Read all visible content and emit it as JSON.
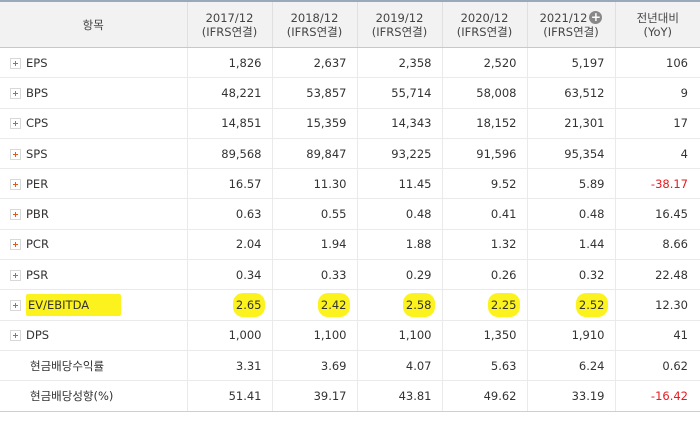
{
  "header": {
    "item": "항목",
    "columns": [
      {
        "year": "2017/12",
        "basis": "(IFRS연결)"
      },
      {
        "year": "2018/12",
        "basis": "(IFRS연결)"
      },
      {
        "year": "2019/12",
        "basis": "(IFRS연결)"
      },
      {
        "year": "2020/12",
        "basis": "(IFRS연결)"
      },
      {
        "year": "2021/12",
        "basis": "(IFRS연결)"
      }
    ],
    "yoy_line1": "전년대비",
    "yoy_line2": "(YoY)",
    "expand_icon": "plus-circle-icon"
  },
  "rows": [
    {
      "name": "EPS",
      "values": [
        "1,826",
        "2,637",
        "2,358",
        "2,520",
        "5,197"
      ],
      "yoy": "106"
    },
    {
      "name": "BPS",
      "values": [
        "48,221",
        "53,857",
        "55,714",
        "58,008",
        "63,512"
      ],
      "yoy": "9"
    },
    {
      "name": "CPS",
      "values": [
        "14,851",
        "15,359",
        "14,343",
        "18,152",
        "21,301"
      ],
      "yoy": "17"
    },
    {
      "name": "SPS",
      "values": [
        "89,568",
        "89,847",
        "93,225",
        "91,596",
        "95,354"
      ],
      "yoy": "4"
    },
    {
      "name": "PER",
      "values": [
        "16.57",
        "11.30",
        "11.45",
        "9.52",
        "5.89"
      ],
      "yoy": "-38.17"
    },
    {
      "name": "PBR",
      "values": [
        "0.63",
        "0.55",
        "0.48",
        "0.41",
        "0.48"
      ],
      "yoy": "16.45"
    },
    {
      "name": "PCR",
      "values": [
        "2.04",
        "1.94",
        "1.88",
        "1.32",
        "1.44"
      ],
      "yoy": "8.66"
    },
    {
      "name": "PSR",
      "values": [
        "0.34",
        "0.33",
        "0.29",
        "0.26",
        "0.32"
      ],
      "yoy": "22.48"
    },
    {
      "name": "EV/EBITDA",
      "values": [
        "2.65",
        "2.42",
        "2.58",
        "2.25",
        "2.52"
      ],
      "yoy": "12.30"
    },
    {
      "name": "DPS",
      "values": [
        "1,000",
        "1,100",
        "1,100",
        "1,350",
        "1,910"
      ],
      "yoy": "41"
    },
    {
      "name": "현금배당수익률",
      "values": [
        "3.31",
        "3.69",
        "4.07",
        "5.63",
        "6.24"
      ],
      "yoy": "0.62"
    },
    {
      "name": "현금배당성향(%)",
      "values": [
        "51.41",
        "39.17",
        "43.81",
        "49.62",
        "33.19"
      ],
      "yoy": "-16.42"
    }
  ],
  "colors": {
    "negative": "#e8191f",
    "highlight": "#fcf31e",
    "expand_plus": "#e35a1a"
  }
}
